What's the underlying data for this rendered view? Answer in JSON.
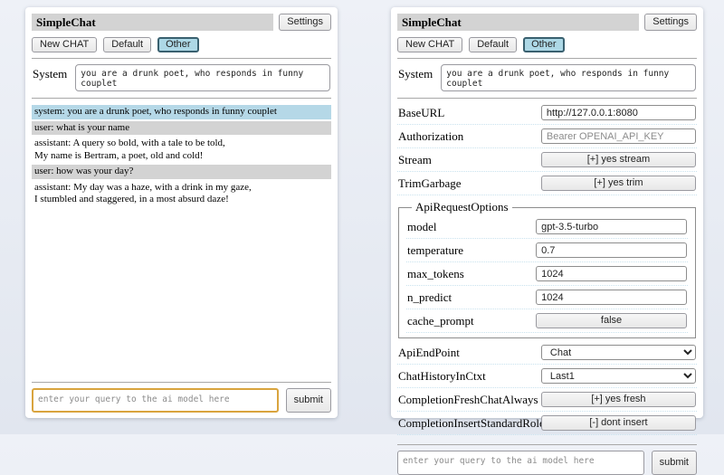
{
  "colors": {
    "title-bar-bg": "#d3d3d3",
    "session-selected-bg": "#add8e6",
    "session-selected-border": "#39606f",
    "system-msg-bg": "#b5d8e7",
    "user-msg-bg": "#d3d3d3",
    "focused-query-border": "#d9a43e",
    "row-separator": "#c9e2ee"
  },
  "app": {
    "title": "SimpleChat",
    "settings_button": "Settings",
    "session_buttons": [
      {
        "label": "New CHAT",
        "selected": false
      },
      {
        "label": "Default",
        "selected": false
      },
      {
        "label": "Other",
        "selected": true
      }
    ],
    "system_prompt": {
      "label": "System",
      "value": "you are a drunk poet, who responds in funny couplet"
    },
    "query": {
      "placeholder": "enter your query to the ai model here",
      "submit_label": "submit"
    }
  },
  "chat_panel": {
    "messages": [
      {
        "role": "system",
        "text": "system: you are a drunk poet, who responds in funny couplet"
      },
      {
        "role": "user",
        "text": "user: what is your name"
      },
      {
        "role": "assistant",
        "text": "assistant: A query so bold, with a tale to be told,\nMy name is Bertram, a poet, old and cold!"
      },
      {
        "role": "user",
        "text": "user: how was your day?"
      },
      {
        "role": "assistant",
        "text": "assistant: My day was a haze, with a drink in my gaze,\nI stumbled and staggered, in a most absurd daze!"
      }
    ]
  },
  "settings_panel": {
    "rows_top": [
      {
        "label": "BaseURL",
        "type": "input",
        "value": "http://127.0.0.1:8080",
        "placeholder": ""
      },
      {
        "label": "Authorization",
        "type": "input",
        "value": "",
        "placeholder": "Bearer OPENAI_API_KEY"
      },
      {
        "label": "Stream",
        "type": "button",
        "value": "[+] yes stream"
      },
      {
        "label": "TrimGarbage",
        "type": "button",
        "value": "[+] yes trim"
      }
    ],
    "api_request_options": {
      "legend": "ApiRequestOptions",
      "rows": [
        {
          "label": "model",
          "type": "input",
          "value": "gpt-3.5-turbo",
          "placeholder": ""
        },
        {
          "label": "temperature",
          "type": "input",
          "value": "0.7",
          "placeholder": ""
        },
        {
          "label": "max_tokens",
          "type": "input",
          "value": "1024",
          "placeholder": ""
        },
        {
          "label": "n_predict",
          "type": "input",
          "value": "1024",
          "placeholder": ""
        },
        {
          "label": "cache_prompt",
          "type": "button",
          "value": "false"
        }
      ]
    },
    "rows_bottom": [
      {
        "label": "ApiEndPoint",
        "type": "select",
        "value": "Chat"
      },
      {
        "label": "ChatHistoryInCtxt",
        "type": "select",
        "value": "Last1"
      },
      {
        "label": "CompletionFreshChatAlways",
        "type": "button",
        "value": "[+] yes fresh"
      },
      {
        "label": "CompletionInsertStandardRolePrefix",
        "type": "button",
        "value": "[-] dont insert"
      }
    ]
  }
}
